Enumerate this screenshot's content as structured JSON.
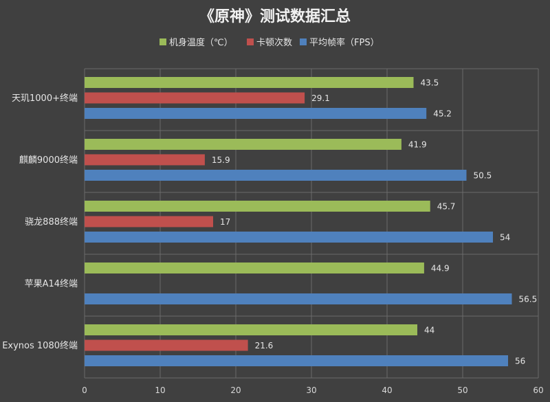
{
  "chart_data": {
    "type": "bar",
    "orientation": "horizontal",
    "title": "《原神》测试数据汇总",
    "categories": [
      "天玑1000+终端",
      "麒麟9000终端",
      "骁龙888终端",
      "苹果A14终端",
      "Exynos 1080终端"
    ],
    "series": [
      {
        "name": "机身温度（℃）",
        "color": "#9bbb59",
        "values": [
          43.5,
          41.9,
          45.7,
          44.9,
          44
        ]
      },
      {
        "name": "卡顿次数",
        "color": "#c0504d",
        "values": [
          29.1,
          15.9,
          17,
          null,
          21.6
        ]
      },
      {
        "name": "平均帧率（FPS）",
        "color": "#4f81bd",
        "values": [
          45.2,
          50.5,
          54,
          56.5,
          56
        ]
      }
    ],
    "xlim": [
      0,
      60
    ],
    "xticks": [
      0,
      10,
      20,
      30,
      40,
      50,
      60
    ],
    "grid": true,
    "legend_position": "top-center",
    "xlabel": "",
    "ylabel": ""
  }
}
